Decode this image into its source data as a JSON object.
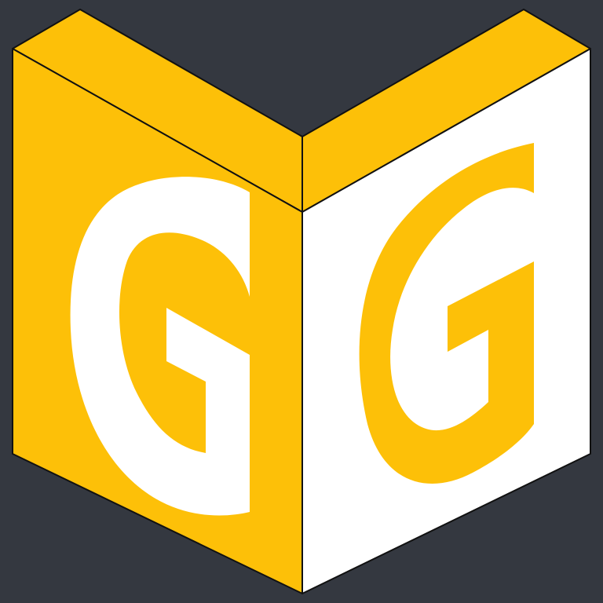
{
  "logo": {
    "left_face_letter": "G",
    "right_face_letter": "G",
    "colors": {
      "background": "#343840",
      "primary": "#FDC008",
      "secondary": "#FFFFFF",
      "outline": "#111111"
    }
  }
}
